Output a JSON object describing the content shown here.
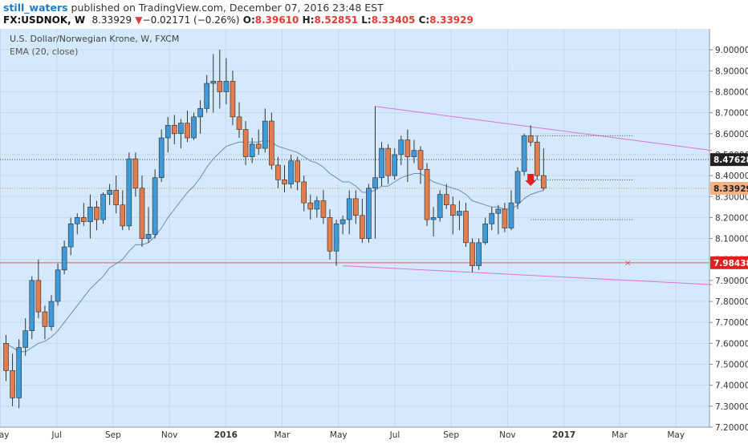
{
  "header": {
    "author": "still_waters",
    "published_text": "published on TradingView.com, December 07, 2016 23:48 EST",
    "symbol": "FX:USDNOK, W",
    "last": "8.33929",
    "change": "−0.02171 (−0.26%)",
    "o_label": "O:",
    "o": "8.39610",
    "h_label": "H:",
    "h": "8.52851",
    "l_label": "L:",
    "l": "8.33405",
    "c_label": "C:",
    "c": "8.33929"
  },
  "colors": {
    "background": "#d4e9fb",
    "up": "#3f9ad9",
    "down": "#e17d4e",
    "ema": "#6a8faf",
    "trendline": "#e070d8",
    "support": "#e05a5a",
    "dotted": "#555555"
  },
  "chart_data": {
    "type": "candlestick",
    "title": "U.S. Dollar/Norwegian Krone, W, FXCM",
    "indicator": "EMA (20, close)",
    "ylim": [
      7.2,
      9.1
    ],
    "y_ticks": [
      "9.00000",
      "8.90000",
      "8.80000",
      "8.70000",
      "8.60000",
      "8.50000",
      "8.40000",
      "8.30000",
      "8.20000",
      "8.10000",
      "8.00000",
      "7.90000",
      "7.80000",
      "7.70000",
      "7.60000",
      "7.50000",
      "7.40000",
      "7.30000",
      "7.20000"
    ],
    "x_ticks": [
      "May",
      "Jul",
      "Sep",
      "Nov",
      "2016",
      "Mar",
      "May",
      "Jul",
      "Sep",
      "Nov",
      "2017",
      "Mar",
      "May"
    ],
    "price_labels": [
      {
        "value": "8.47628",
        "style": "dark"
      },
      {
        "value": "8.33929",
        "style": "orange"
      },
      {
        "value": "7.98438",
        "style": "red"
      }
    ],
    "candles": [
      [
        7.6,
        7.64,
        7.42,
        7.47
      ],
      [
        7.47,
        7.55,
        7.3,
        7.34
      ],
      [
        7.34,
        7.62,
        7.29,
        7.58
      ],
      [
        7.58,
        7.72,
        7.54,
        7.66
      ],
      [
        7.66,
        7.92,
        7.62,
        7.9
      ],
      [
        7.9,
        8.0,
        7.72,
        7.75
      ],
      [
        7.75,
        7.78,
        7.62,
        7.68
      ],
      [
        7.68,
        7.83,
        7.66,
        7.8
      ],
      [
        7.8,
        7.98,
        7.78,
        7.95
      ],
      [
        7.95,
        8.09,
        7.93,
        8.06
      ],
      [
        8.06,
        8.2,
        8.02,
        8.17
      ],
      [
        8.17,
        8.22,
        8.12,
        8.2
      ],
      [
        8.2,
        8.27,
        8.16,
        8.18
      ],
      [
        8.18,
        8.31,
        8.1,
        8.25
      ],
      [
        8.25,
        8.28,
        8.14,
        8.19
      ],
      [
        8.19,
        8.32,
        8.17,
        8.31
      ],
      [
        8.31,
        8.36,
        8.26,
        8.33
      ],
      [
        8.33,
        8.4,
        8.22,
        8.26
      ],
      [
        8.26,
        8.33,
        8.14,
        8.16
      ],
      [
        8.16,
        8.51,
        8.14,
        8.48
      ],
      [
        8.48,
        8.51,
        8.3,
        8.34
      ],
      [
        8.34,
        8.4,
        8.06,
        8.1
      ],
      [
        8.1,
        8.25,
        8.08,
        8.12
      ],
      [
        8.12,
        8.43,
        8.1,
        8.39
      ],
      [
        8.39,
        8.62,
        8.37,
        8.58
      ],
      [
        8.58,
        8.68,
        8.51,
        8.64
      ],
      [
        8.64,
        8.69,
        8.55,
        8.6
      ],
      [
        8.6,
        8.67,
        8.53,
        8.65
      ],
      [
        8.65,
        8.71,
        8.56,
        8.58
      ],
      [
        8.58,
        8.7,
        8.57,
        8.68
      ],
      [
        8.68,
        8.76,
        8.6,
        8.72
      ],
      [
        8.72,
        8.88,
        8.7,
        8.84
      ],
      [
        8.84,
        8.98,
        8.7,
        8.85
      ],
      [
        8.85,
        9.0,
        8.72,
        8.8
      ],
      [
        8.8,
        8.96,
        8.74,
        8.85
      ],
      [
        8.85,
        8.9,
        8.64,
        8.68
      ],
      [
        8.68,
        8.75,
        8.58,
        8.62
      ],
      [
        8.62,
        8.66,
        8.45,
        8.49
      ],
      [
        8.49,
        8.58,
        8.46,
        8.55
      ],
      [
        8.55,
        8.62,
        8.5,
        8.53
      ],
      [
        8.53,
        8.72,
        8.51,
        8.66
      ],
      [
        8.66,
        8.7,
        8.43,
        8.45
      ],
      [
        8.45,
        8.49,
        8.34,
        8.38
      ],
      [
        8.38,
        8.45,
        8.32,
        8.36
      ],
      [
        8.36,
        8.5,
        8.34,
        8.47
      ],
      [
        8.47,
        8.49,
        8.33,
        8.37
      ],
      [
        8.37,
        8.4,
        8.23,
        8.27
      ],
      [
        8.27,
        8.31,
        8.19,
        8.24
      ],
      [
        8.24,
        8.3,
        8.2,
        8.28
      ],
      [
        8.28,
        8.33,
        8.17,
        8.2
      ],
      [
        8.2,
        8.24,
        8.0,
        8.04
      ],
      [
        8.04,
        8.19,
        7.97,
        8.17
      ],
      [
        8.17,
        8.21,
        8.12,
        8.19
      ],
      [
        8.19,
        8.33,
        8.12,
        8.29
      ],
      [
        8.29,
        8.33,
        8.17,
        8.21
      ],
      [
        8.21,
        8.29,
        8.08,
        8.1
      ],
      [
        8.1,
        8.36,
        8.08,
        8.34
      ],
      [
        8.34,
        8.73,
        8.1,
        8.39
      ],
      [
        8.39,
        8.56,
        8.35,
        8.53
      ],
      [
        8.53,
        8.55,
        8.36,
        8.4
      ],
      [
        8.4,
        8.53,
        8.38,
        8.5
      ],
      [
        8.5,
        8.59,
        8.45,
        8.57
      ],
      [
        8.57,
        8.62,
        8.37,
        8.49
      ],
      [
        8.49,
        8.57,
        8.46,
        8.52
      ],
      [
        8.52,
        8.54,
        8.36,
        8.43
      ],
      [
        8.43,
        8.46,
        8.16,
        8.19
      ],
      [
        8.19,
        8.25,
        8.11,
        8.2
      ],
      [
        8.2,
        8.33,
        8.18,
        8.31
      ],
      [
        8.31,
        8.36,
        8.24,
        8.26
      ],
      [
        8.26,
        8.3,
        8.12,
        8.21
      ],
      [
        8.21,
        8.28,
        8.14,
        8.23
      ],
      [
        8.23,
        8.27,
        8.06,
        8.08
      ],
      [
        8.08,
        8.1,
        7.94,
        7.97
      ],
      [
        7.97,
        8.1,
        7.95,
        8.08
      ],
      [
        8.08,
        8.2,
        8.07,
        8.17
      ],
      [
        8.17,
        8.25,
        8.14,
        8.22
      ],
      [
        8.22,
        8.26,
        8.12,
        8.24
      ],
      [
        8.24,
        8.27,
        8.13,
        8.15
      ],
      [
        8.15,
        8.33,
        8.14,
        8.27
      ],
      [
        8.27,
        8.44,
        8.24,
        8.42
      ],
      [
        8.42,
        8.6,
        8.4,
        8.59
      ],
      [
        8.59,
        8.64,
        8.54,
        8.56
      ],
      [
        8.56,
        8.59,
        8.38,
        8.4
      ],
      [
        8.4,
        8.53,
        8.33,
        8.34
      ]
    ],
    "x_tick_indices": [
      0,
      8.7,
      17.4,
      26.1,
      34.8,
      43.5,
      52.2,
      60.9,
      69.6,
      78.3,
      87,
      95.6,
      104.3
    ],
    "ema_values": [
      7.6,
      7.58,
      7.56,
      7.56,
      7.58,
      7.6,
      7.61,
      7.63,
      7.66,
      7.7,
      7.74,
      7.78,
      7.82,
      7.86,
      7.89,
      7.92,
      7.96,
      7.98,
      8.0,
      8.04,
      8.07,
      8.07,
      8.08,
      8.11,
      8.15,
      8.2,
      8.24,
      8.28,
      8.32,
      8.35,
      8.39,
      8.44,
      8.48,
      8.51,
      8.54,
      8.55,
      8.56,
      8.56,
      8.56,
      8.56,
      8.57,
      8.56,
      8.54,
      8.53,
      8.52,
      8.51,
      8.49,
      8.47,
      8.46,
      8.44,
      8.41,
      8.39,
      8.37,
      8.37,
      8.35,
      8.32,
      8.32,
      8.33,
      8.35,
      8.35,
      8.37,
      8.39,
      8.4,
      8.41,
      8.41,
      8.39,
      8.37,
      8.36,
      8.35,
      8.34,
      8.33,
      8.31,
      8.28,
      8.27,
      8.26,
      8.25,
      8.25,
      8.24,
      8.24,
      8.26,
      8.29,
      8.31,
      8.32,
      8.33
    ],
    "annotations": [
      {
        "type": "trendline",
        "from": [
          57,
          8.73
        ],
        "to": [
          109,
          8.52
        ]
      },
      {
        "type": "trendline",
        "from": [
          52,
          7.97
        ],
        "to": [
          109,
          7.88
        ]
      },
      {
        "type": "hline",
        "value": 8.4763,
        "style": "dark-dotted"
      },
      {
        "type": "hline",
        "value": 7.98438,
        "style": "red"
      },
      {
        "type": "hline",
        "value": 8.33929,
        "style": "orange-dotted"
      },
      {
        "type": "segment",
        "from": [
          81,
          8.59
        ],
        "to": [
          97,
          8.59
        ]
      },
      {
        "type": "segment",
        "from": [
          81,
          8.38
        ],
        "to": [
          97,
          8.38
        ]
      },
      {
        "type": "segment",
        "from": [
          81,
          8.19
        ],
        "to": [
          97,
          8.19
        ]
      },
      {
        "type": "marker",
        "symbol": "x",
        "at": [
          96,
          7.985
        ]
      },
      {
        "type": "arrow-down",
        "at": [
          81,
          8.37
        ]
      }
    ]
  }
}
